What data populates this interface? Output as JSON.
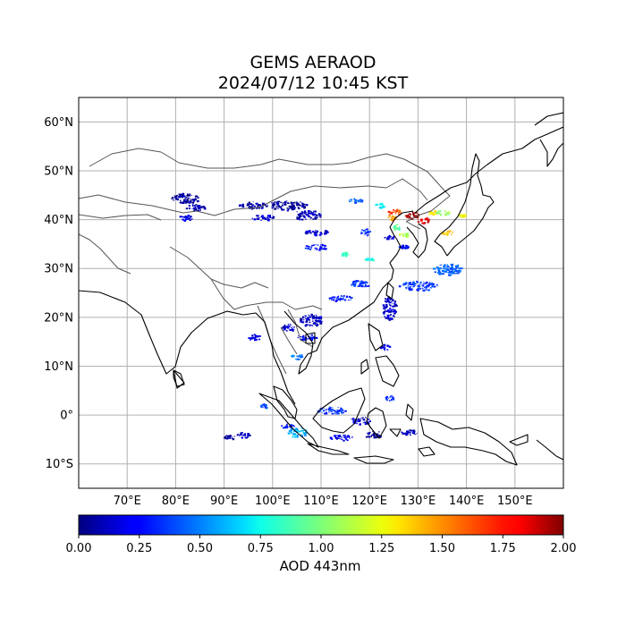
{
  "title": {
    "line1": "GEMS AERAOD",
    "line2": "2024/07/12 10:45 KST"
  },
  "map": {
    "lon_range": [
      60,
      160
    ],
    "lat_range": [
      -15,
      65
    ],
    "lon_ticks": [
      {
        "value": 70,
        "label": "70°E"
      },
      {
        "value": 80,
        "label": "80°E"
      },
      {
        "value": 90,
        "label": "90°E"
      },
      {
        "value": 100,
        "label": "100°E"
      },
      {
        "value": 110,
        "label": "110°E"
      },
      {
        "value": 120,
        "label": "120°E"
      },
      {
        "value": 130,
        "label": "130°E"
      },
      {
        "value": 140,
        "label": "140°E"
      },
      {
        "value": 150,
        "label": "150°E"
      }
    ],
    "lat_ticks": [
      {
        "value": 60,
        "label": "60°N"
      },
      {
        "value": 50,
        "label": "50°N"
      },
      {
        "value": 40,
        "label": "40°N"
      },
      {
        "value": 30,
        "label": "30°N"
      },
      {
        "value": 20,
        "label": "20°N"
      },
      {
        "value": 10,
        "label": "10°N"
      },
      {
        "value": 0,
        "label": "0°"
      },
      {
        "value": -10,
        "label": "10°S"
      }
    ],
    "grid": true,
    "colors": {
      "coast": "#000000",
      "border": "#555555",
      "grid": "#b0b0b0"
    }
  },
  "colorbar": {
    "colormap": "jet",
    "range": [
      0,
      2
    ],
    "ticks": [
      "0.00",
      "0.25",
      "0.50",
      "0.75",
      "1.00",
      "1.25",
      "1.50",
      "1.75",
      "2.00"
    ],
    "label": "AOD 443nm"
  },
  "aod_regions": [
    {
      "lon": 82,
      "lat": 44.5,
      "w": 6,
      "h": 2.0,
      "aod": 0.05
    },
    {
      "lon": 84,
      "lat": 42.5,
      "w": 4,
      "h": 1.5,
      "aod": 0.1
    },
    {
      "lon": 82,
      "lat": 40.5,
      "w": 3,
      "h": 1.2,
      "aod": 0.2
    },
    {
      "lon": 96,
      "lat": 43.0,
      "w": 6,
      "h": 1.5,
      "aod": 0.08
    },
    {
      "lon": 103,
      "lat": 43.0,
      "w": 8,
      "h": 2.0,
      "aod": 0.05
    },
    {
      "lon": 107,
      "lat": 41.0,
      "w": 6,
      "h": 2.0,
      "aod": 0.1
    },
    {
      "lon": 98,
      "lat": 40.5,
      "w": 5,
      "h": 1.2,
      "aod": 0.15
    },
    {
      "lon": 109,
      "lat": 37.5,
      "w": 5,
      "h": 1.2,
      "aod": 0.15
    },
    {
      "lon": 109,
      "lat": 34.5,
      "w": 5,
      "h": 1.2,
      "aod": 0.3
    },
    {
      "lon": 115,
      "lat": 33.0,
      "w": 2,
      "h": 0.8,
      "aod": 0.85
    },
    {
      "lon": 120,
      "lat": 32.0,
      "w": 2,
      "h": 0.6,
      "aod": 0.8
    },
    {
      "lon": 119,
      "lat": 37.5,
      "w": 2,
      "h": 1.5,
      "aod": 0.35
    },
    {
      "lon": 117,
      "lat": 44.0,
      "w": 3,
      "h": 0.8,
      "aod": 0.4
    },
    {
      "lon": 122,
      "lat": 43.0,
      "w": 2,
      "h": 1.0,
      "aod": 0.7
    },
    {
      "lon": 125,
      "lat": 41.5,
      "w": 3,
      "h": 1.5,
      "aod": 1.6
    },
    {
      "lon": 128.5,
      "lat": 41.0,
      "w": 3,
      "h": 1.5,
      "aod": 1.95
    },
    {
      "lon": 131,
      "lat": 40.0,
      "w": 2.5,
      "h": 1.2,
      "aod": 1.8
    },
    {
      "lon": 133,
      "lat": 41.5,
      "w": 2,
      "h": 1.0,
      "aod": 1.3
    },
    {
      "lon": 135,
      "lat": 41.5,
      "w": 3,
      "h": 1.0,
      "aod": 1.05
    },
    {
      "lon": 136,
      "lat": 37.5,
      "w": 3,
      "h": 1.0,
      "aod": 1.35
    },
    {
      "lon": 139,
      "lat": 41.0,
      "w": 1.5,
      "h": 0.8,
      "aod": 1.25
    },
    {
      "lon": 127,
      "lat": 37.0,
      "w": 2,
      "h": 0.8,
      "aod": 1.1
    },
    {
      "lon": 125.5,
      "lat": 38.5,
      "w": 1.5,
      "h": 1.2,
      "aod": 0.95
    },
    {
      "lon": 124.5,
      "lat": 40.5,
      "w": 1.5,
      "h": 1.0,
      "aod": 1.45
    },
    {
      "lon": 124,
      "lat": 36.5,
      "w": 2,
      "h": 0.8,
      "aod": 0.15
    },
    {
      "lon": 127,
      "lat": 34.5,
      "w": 2,
      "h": 0.8,
      "aod": 0.25
    },
    {
      "lon": 136,
      "lat": 30.0,
      "w": 6,
      "h": 2.5,
      "aod": 0.45
    },
    {
      "lon": 130,
      "lat": 26.5,
      "w": 8,
      "h": 2.0,
      "aod": 0.35
    },
    {
      "lon": 124,
      "lat": 22.0,
      "w": 3,
      "h": 5.0,
      "aod": 0.15
    },
    {
      "lon": 118,
      "lat": 27.0,
      "w": 4,
      "h": 1.5,
      "aod": 0.35
    },
    {
      "lon": 114,
      "lat": 24.0,
      "w": 5,
      "h": 1.2,
      "aod": 0.3
    },
    {
      "lon": 108,
      "lat": 19.5,
      "w": 5,
      "h": 2.5,
      "aod": 0.12
    },
    {
      "lon": 103,
      "lat": 18.0,
      "w": 3,
      "h": 1.5,
      "aod": 0.15
    },
    {
      "lon": 107,
      "lat": 16.0,
      "w": 4,
      "h": 1.2,
      "aod": 0.25
    },
    {
      "lon": 105,
      "lat": 12.0,
      "w": 3,
      "h": 1.2,
      "aod": 0.5
    },
    {
      "lon": 96,
      "lat": 16.0,
      "w": 3,
      "h": 1.2,
      "aod": 0.2
    },
    {
      "lon": 123,
      "lat": 14.0,
      "w": 2,
      "h": 1.5,
      "aod": 0.2
    },
    {
      "lon": 112,
      "lat": 1.0,
      "w": 6,
      "h": 1.5,
      "aod": 0.35
    },
    {
      "lon": 118,
      "lat": -1.0,
      "w": 4,
      "h": 1.5,
      "aod": 0.15
    },
    {
      "lon": 105,
      "lat": -3.5,
      "w": 4,
      "h": 2.0,
      "aod": 0.6
    },
    {
      "lon": 103,
      "lat": -2.0,
      "w": 3,
      "h": 1.2,
      "aod": 0.3
    },
    {
      "lon": 114,
      "lat": -4.5,
      "w": 5,
      "h": 1.2,
      "aod": 0.2
    },
    {
      "lon": 121,
      "lat": -4.0,
      "w": 4,
      "h": 1.5,
      "aod": 0.05
    },
    {
      "lon": 128,
      "lat": -3.5,
      "w": 4,
      "h": 1.2,
      "aod": 0.1
    },
    {
      "lon": 124,
      "lat": 3.5,
      "w": 2,
      "h": 1.2,
      "aod": 0.3
    },
    {
      "lon": 98,
      "lat": 2.0,
      "w": 2,
      "h": 1.0,
      "aod": 0.4
    },
    {
      "lon": 94,
      "lat": -4.0,
      "w": 3,
      "h": 1.2,
      "aod": 0.15
    },
    {
      "lon": 91,
      "lat": -4.5,
      "w": 2.5,
      "h": 1.0,
      "aod": 0.05
    }
  ]
}
